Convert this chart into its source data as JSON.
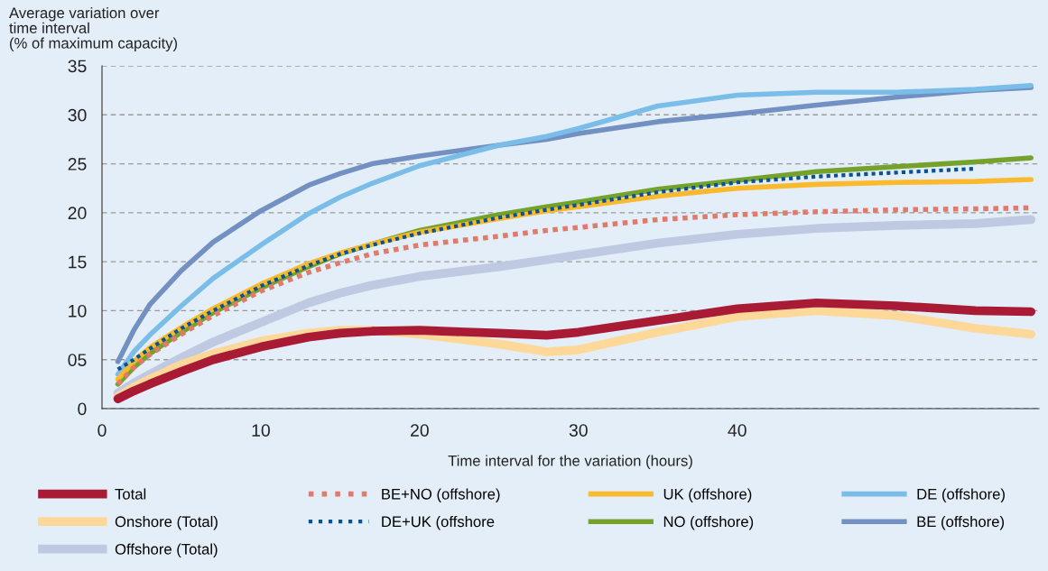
{
  "chart_data": {
    "type": "line",
    "ylabel": "Average variation over\ntime interval\n(% of maximum capacity)",
    "xlabel": "Time interval for the variation (hours)",
    "x": [
      1,
      2,
      3,
      5,
      7,
      10,
      13,
      15,
      17,
      20,
      25,
      28,
      30,
      35,
      40,
      45,
      50,
      55,
      58.5
    ],
    "xlim": [
      0,
      59
    ],
    "xticks": [
      0,
      10,
      20,
      30,
      40
    ],
    "ylim": [
      0,
      35
    ],
    "yticks": [
      0,
      {
        "value": 5,
        "label": "05"
      },
      10,
      15,
      20,
      25,
      30,
      35
    ],
    "grid": "y",
    "legend": "bottom",
    "series": [
      {
        "name": "Total",
        "color": "#a91b35",
        "line_style": "solid",
        "values": [
          1.0,
          1.8,
          2.5,
          3.8,
          5.0,
          6.3,
          7.3,
          7.7,
          7.9,
          8.0,
          7.7,
          7.5,
          7.8,
          9.0,
          10.2,
          10.8,
          10.5,
          10.0,
          9.9
        ]
      },
      {
        "name": "Onshore (Total)",
        "color": "#fed899",
        "line_style": "solid",
        "values": [
          1.2,
          2.2,
          3.0,
          4.5,
          5.6,
          6.9,
          7.7,
          8.0,
          8.0,
          7.6,
          6.6,
          5.8,
          6.0,
          7.8,
          9.4,
          10.0,
          9.5,
          8.2,
          7.6
        ]
      },
      {
        "name": "Offshore (Total)",
        "color": "#bfc9e2",
        "line_style": "solid",
        "values": [
          1.6,
          2.6,
          3.5,
          5.2,
          6.8,
          8.8,
          10.8,
          11.8,
          12.6,
          13.5,
          14.5,
          15.2,
          15.7,
          16.9,
          17.8,
          18.4,
          18.7,
          18.9,
          19.3
        ]
      },
      {
        "name": "BE+NO (offshore)",
        "color": "#e07a6b",
        "line_style": "dotted",
        "values": [
          2.5,
          4.2,
          5.5,
          7.6,
          9.5,
          12.0,
          13.9,
          14.9,
          15.8,
          16.7,
          17.6,
          18.2,
          18.5,
          19.3,
          19.8,
          20.1,
          20.3,
          20.4,
          20.5
        ]
      },
      {
        "name": "DE+UK (offshore",
        "color": "#0a5291",
        "line_style": "dotted",
        "values": [
          4.0,
          5.0,
          6.1,
          8.2,
          10.0,
          12.5,
          14.6,
          15.8,
          16.7,
          17.9,
          19.5,
          20.3,
          20.8,
          22.1,
          23.1,
          23.7,
          24.1,
          24.5,
          null
        ]
      },
      {
        "name": "UK (offshore)",
        "color": "#fbb92d",
        "line_style": "solid",
        "values": [
          3.0,
          4.8,
          6.2,
          8.3,
          10.2,
          12.7,
          14.8,
          15.9,
          16.8,
          18.0,
          19.4,
          20.2,
          20.6,
          21.7,
          22.5,
          22.9,
          23.1,
          23.2,
          23.4
        ]
      },
      {
        "name": "NO (offshore)",
        "color": "#74a22b",
        "line_style": "solid",
        "values": [
          2.5,
          4.2,
          5.6,
          7.8,
          9.8,
          12.3,
          14.5,
          15.8,
          16.8,
          18.2,
          19.8,
          20.6,
          21.1,
          22.4,
          23.3,
          24.2,
          24.7,
          25.2,
          25.6
        ]
      },
      {
        "name": "DE (offshore)",
        "color": "#7abde8",
        "line_style": "solid",
        "values": [
          3.5,
          5.8,
          7.5,
          10.5,
          13.3,
          16.7,
          19.9,
          21.6,
          23.0,
          24.8,
          26.9,
          27.8,
          28.6,
          30.9,
          32.0,
          32.3,
          32.3,
          32.6,
          33.0
        ]
      },
      {
        "name": "BE (offshore)",
        "color": "#7290c1",
        "line_style": "solid",
        "values": [
          4.8,
          8.0,
          10.6,
          14.1,
          17.0,
          20.2,
          22.8,
          24.0,
          25.0,
          25.8,
          26.9,
          27.5,
          28.1,
          29.3,
          30.1,
          31.0,
          31.8,
          32.5,
          32.8
        ]
      }
    ]
  }
}
